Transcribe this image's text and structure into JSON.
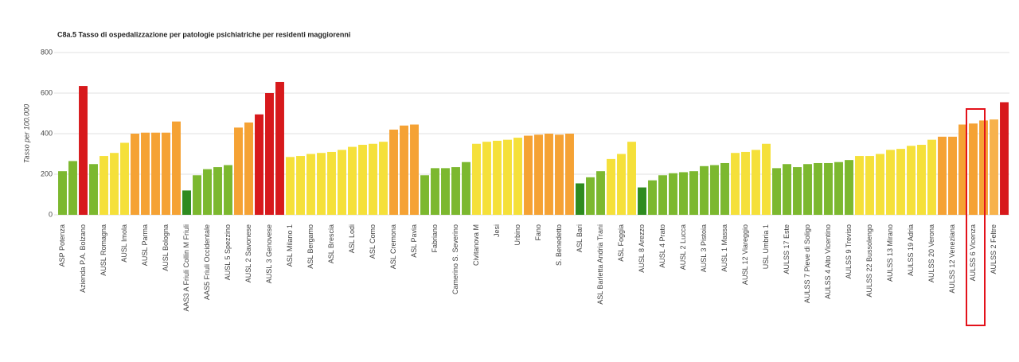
{
  "chart_data": {
    "type": "bar",
    "title": "C8a.5 Tasso di ospedalizzazione per patologie psichiatriche per residenti maggiorenni",
    "y_label": "Tasso per 100.000",
    "categories": [
      "ASP Potenza",
      null,
      "Azienda P.A. Bolzano",
      null,
      "AUSL Romagna",
      null,
      "AUSL Imola",
      null,
      "AUSL Parma",
      null,
      "AUSL Bologna",
      null,
      "AAS3 A Friuli Collin M Friuli",
      null,
      "AAS5 Friuli Occidentale",
      null,
      "AUSL 5 Spezzino",
      null,
      "AUSL 2 Savonese",
      null,
      "AUSL 3 Genovese",
      null,
      "ASL Milano 1",
      null,
      "ASL Bergamo",
      null,
      "ASL Brescia",
      null,
      "ASL Lodi",
      null,
      "ASL Como",
      null,
      "ASL Cremona",
      null,
      "ASL Pavia",
      null,
      "Fabriano",
      null,
      "Camerino S. Severino",
      null,
      "Civitanova M",
      null,
      "Jesi",
      null,
      "Urbino",
      null,
      "Fano",
      null,
      "S. Benedetto",
      null,
      "ASL Bari",
      null,
      "ASL Barletta Andria Trani",
      null,
      "ASL Foggia",
      null,
      "AUSL 8 Arezzo",
      null,
      "AUSL 4 Prato",
      null,
      "AUSL 2 Lucca",
      null,
      "AUSL 3 Pistoia",
      null,
      "AUSL 1 Massa",
      null,
      "AUSL 12 Viareggio",
      null,
      "USL Umbria 1",
      null,
      "AULSS 17 Este",
      null,
      "AULSS 7 Pieve di Soligo",
      null,
      "AULSS 4 Alto Vicentino",
      null,
      "AULSS 9 Treviso",
      null,
      "AULSS 22 Bussolengo",
      null,
      "AULSS 13 Mirano",
      null,
      "AULSS 19 Adria",
      null,
      "AULSS 20 Verona",
      null,
      "AULSS 12 Veneziana",
      null,
      "AULSS 6 Vicenza",
      null,
      "AULSS 2 Feltre",
      null
    ],
    "values": [
      215,
      265,
      635,
      250,
      290,
      305,
      355,
      400,
      405,
      405,
      405,
      460,
      120,
      195,
      225,
      235,
      245,
      430,
      455,
      495,
      600,
      655,
      285,
      290,
      300,
      305,
      310,
      320,
      335,
      345,
      350,
      360,
      420,
      440,
      445,
      195,
      230,
      230,
      235,
      260,
      350,
      360,
      365,
      370,
      380,
      390,
      395,
      400,
      395,
      400,
      155,
      185,
      215,
      275,
      300,
      360,
      135,
      170,
      195,
      205,
      210,
      215,
      240,
      245,
      255,
      305,
      310,
      320,
      350,
      230,
      250,
      235,
      250,
      255,
      255,
      260,
      270,
      290,
      290,
      300,
      320,
      325,
      340,
      345,
      370,
      385,
      385,
      445,
      450,
      465,
      470,
      555
    ],
    "colors": [
      "#7cb82f",
      "#7cb82f",
      "#d7191c",
      "#7cb82f",
      "#f5e03a",
      "#f5e03a",
      "#f5e03a",
      "#f5a234",
      "#f5a234",
      "#f5a234",
      "#f5a234",
      "#f5a234",
      "#2e8b1f",
      "#7cb82f",
      "#7cb82f",
      "#7cb82f",
      "#7cb82f",
      "#f5a234",
      "#f5a234",
      "#d7191c",
      "#d7191c",
      "#d7191c",
      "#f5e03a",
      "#f5e03a",
      "#f5e03a",
      "#f5e03a",
      "#f5e03a",
      "#f5e03a",
      "#f5e03a",
      "#f5e03a",
      "#f5e03a",
      "#f5e03a",
      "#f5a234",
      "#f5a234",
      "#f5a234",
      "#7cb82f",
      "#7cb82f",
      "#7cb82f",
      "#7cb82f",
      "#7cb82f",
      "#f5e03a",
      "#f5e03a",
      "#f5e03a",
      "#f5e03a",
      "#f5e03a",
      "#f5a234",
      "#f5a234",
      "#f5a234",
      "#f5a234",
      "#f5a234",
      "#2e8b1f",
      "#7cb82f",
      "#7cb82f",
      "#f5e03a",
      "#f5e03a",
      "#f5e03a",
      "#2e8b1f",
      "#7cb82f",
      "#7cb82f",
      "#7cb82f",
      "#7cb82f",
      "#7cb82f",
      "#7cb82f",
      "#7cb82f",
      "#7cb82f",
      "#f5e03a",
      "#f5e03a",
      "#f5e03a",
      "#f5e03a",
      "#7cb82f",
      "#7cb82f",
      "#7cb82f",
      "#7cb82f",
      "#7cb82f",
      "#7cb82f",
      "#7cb82f",
      "#7cb82f",
      "#f5e03a",
      "#f5e03a",
      "#f5e03a",
      "#f5e03a",
      "#f5e03a",
      "#f5e03a",
      "#f5e03a",
      "#f5e03a",
      "#f5a234",
      "#f5a234",
      "#f5a234",
      "#f5a234",
      "#f5a234",
      "#f7b24c",
      "#d7191c"
    ],
    "highlight_index": 88,
    "ylim": [
      0,
      800
    ],
    "yticks": [
      0,
      200,
      400,
      600,
      800
    ],
    "grid": true
  }
}
